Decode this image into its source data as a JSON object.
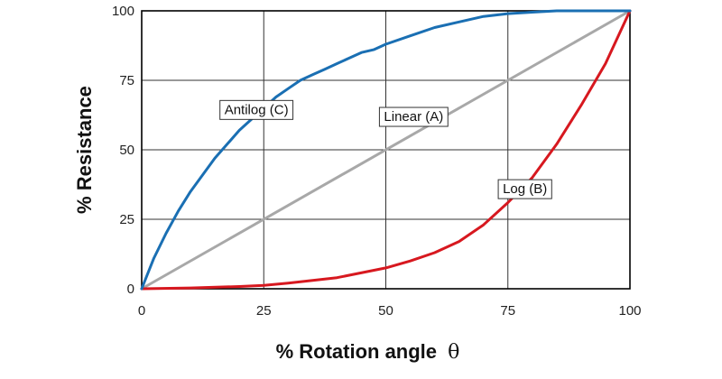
{
  "chart_data": {
    "type": "line",
    "xlabel": "% Rotation angle",
    "xlabel_symbol": "θ",
    "ylabel": "% Resistance",
    "xlim": [
      0,
      100
    ],
    "ylim": [
      0,
      100
    ],
    "x_ticks": [
      "0",
      "25",
      "50",
      "75",
      "100"
    ],
    "y_ticks": [
      "0",
      "25",
      "50",
      "75",
      "100"
    ],
    "grid": true,
    "series": [
      {
        "name": "Antilog (C)",
        "color": "#1a6fb3",
        "x": [
          0,
          2.5,
          5,
          7.5,
          10,
          12.5,
          15,
          17.5,
          20,
          22.5,
          25,
          27.5,
          30,
          32.5,
          35,
          37.5,
          40,
          42.5,
          45,
          47.5,
          50,
          55,
          60,
          65,
          70,
          75,
          80,
          85,
          90,
          95,
          100
        ],
        "y": [
          0,
          11,
          20,
          28,
          35,
          41,
          47,
          52,
          57,
          61,
          65,
          69,
          72,
          75,
          77,
          79,
          81,
          83,
          85,
          86,
          88,
          91,
          94,
          96,
          98,
          99,
          99.5,
          100,
          100,
          100,
          100
        ]
      },
      {
        "name": "Linear (A)",
        "color": "#a8a8a8",
        "x": [
          0,
          100
        ],
        "y": [
          0,
          100
        ]
      },
      {
        "name": "Log (B)",
        "color": "#d7181f",
        "x": [
          0,
          10,
          20,
          25,
          30,
          40,
          50,
          55,
          60,
          65,
          70,
          75,
          80,
          85,
          90,
          95,
          100
        ],
        "y": [
          0,
          0.3,
          0.8,
          1.2,
          2,
          4,
          7.5,
          10,
          13,
          17,
          23,
          31,
          40,
          52,
          66,
          81,
          100
        ]
      }
    ],
    "annotations": [
      {
        "text": "Antilog (C)",
        "x": 23.5,
        "y": 64.5
      },
      {
        "text": "Linear (A)",
        "x": 55.7,
        "y": 62
      },
      {
        "text": "Log (B)",
        "x": 78.5,
        "y": 36
      }
    ]
  }
}
